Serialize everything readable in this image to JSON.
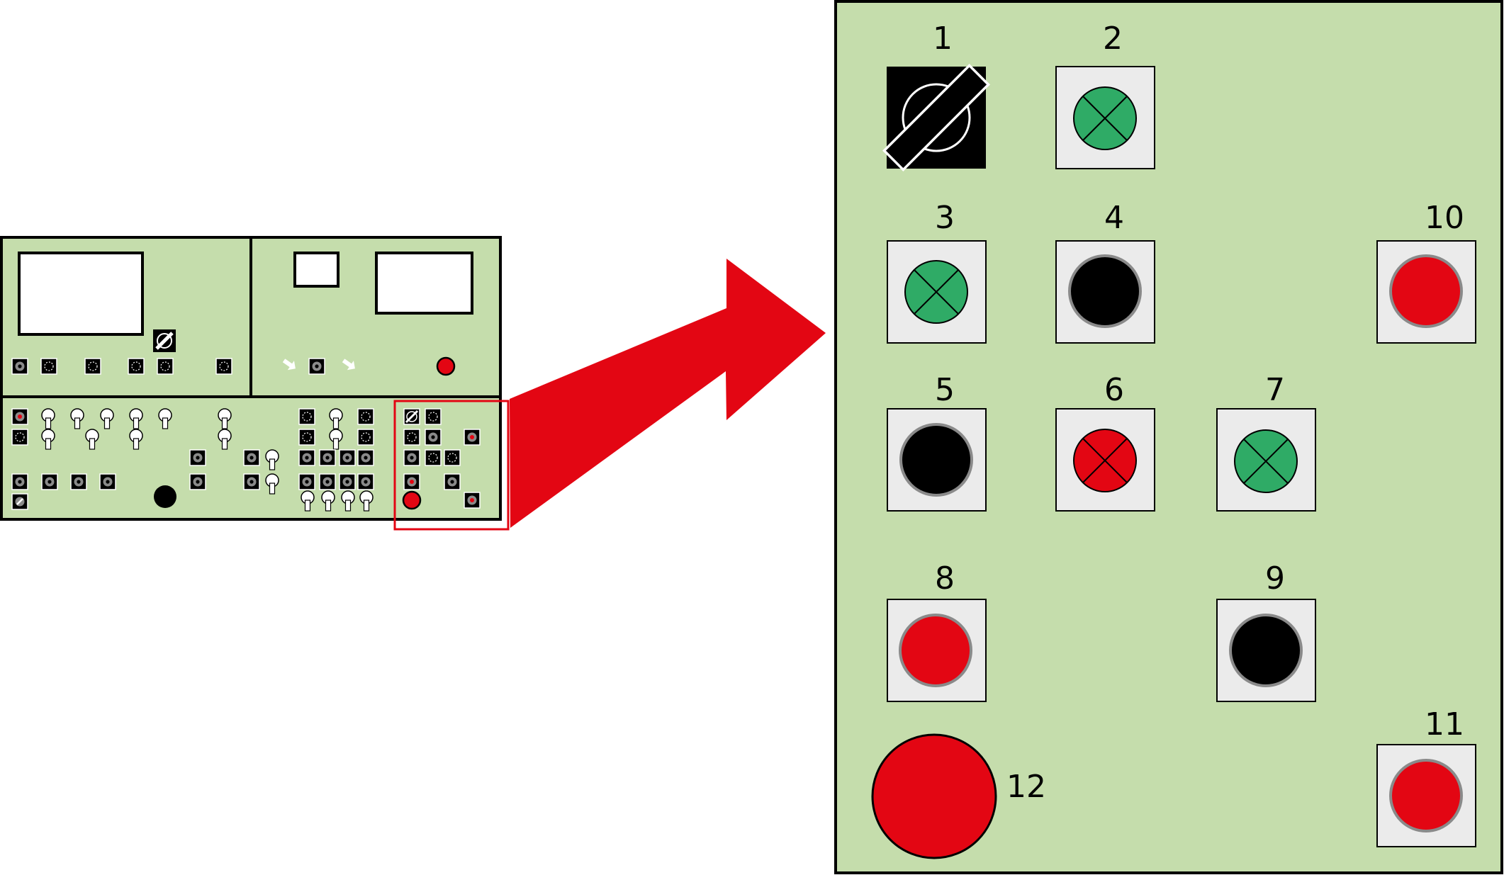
{
  "colors": {
    "panel": "#c5ddac",
    "outline": "#000000",
    "highlight": "#e30613",
    "button_face": "#ebebeb",
    "green_lamp": "#2fab66",
    "red": "#e30613",
    "black": "#000000",
    "gray_rim": "#8a8a8a"
  },
  "detail_panel": {
    "items": [
      {
        "label": "1",
        "kind": "key-switch"
      },
      {
        "label": "2",
        "kind": "green-indicator-lamp"
      },
      {
        "label": "3",
        "kind": "green-indicator-lamp"
      },
      {
        "label": "4",
        "kind": "black-pushbutton"
      },
      {
        "label": "5",
        "kind": "black-pushbutton"
      },
      {
        "label": "6",
        "kind": "red-indicator-lamp"
      },
      {
        "label": "7",
        "kind": "green-indicator-lamp"
      },
      {
        "label": "8",
        "kind": "red-pushbutton"
      },
      {
        "label": "9",
        "kind": "black-pushbutton"
      },
      {
        "label": "10",
        "kind": "red-pushbutton"
      },
      {
        "label": "11",
        "kind": "red-pushbutton"
      },
      {
        "label": "12",
        "kind": "emergency-stop-button"
      }
    ]
  }
}
